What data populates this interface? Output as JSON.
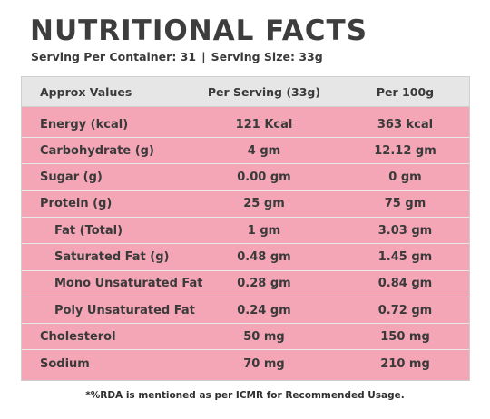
{
  "title": "NUTRITIONAL FACTS",
  "serving": {
    "per_container": "Serving Per Container: 31",
    "separator": "|",
    "size": "Serving Size: 33g"
  },
  "headers": [
    "Approx Values",
    "Per Serving (33g)",
    "Per 100g"
  ],
  "rows": [
    {
      "label": "Energy (kcal)",
      "per_serving": "121  Kcal",
      "per_100g": "363 kcal",
      "indent": false
    },
    {
      "label": "Carbohydrate (g)",
      "per_serving": "4 gm",
      "per_100g": "12.12 gm",
      "indent": false
    },
    {
      "label": "Sugar (g)",
      "per_serving": "0.00 gm",
      "per_100g": "0 gm",
      "indent": false
    },
    {
      "label": "Protein (g)",
      "per_serving": "25 gm",
      "per_100g": "75 gm",
      "indent": false
    },
    {
      "label": "Fat (Total)",
      "per_serving": "1 gm",
      "per_100g": "3.03 gm",
      "indent": true
    },
    {
      "label": "Saturated Fat (g)",
      "per_serving": "0.48 gm",
      "per_100g": "1.45 gm",
      "indent": true
    },
    {
      "label": "Mono Unsaturated Fat",
      "per_serving": "0.28 gm",
      "per_100g": "0.84 gm",
      "indent": true
    },
    {
      "label": "Poly Unsaturated Fat",
      "per_serving": "0.24 gm",
      "per_100g": "0.72 gm",
      "indent": true
    },
    {
      "label": "Cholesterol",
      "per_serving": "50 mg",
      "per_100g": "150 mg",
      "indent": false
    },
    {
      "label": "Sodium",
      "per_serving": "70 mg",
      "per_100g": "210 mg",
      "indent": false
    }
  ],
  "footnote": "*%RDA is mentioned as per ICMR for Recommended Usage.",
  "colors": {
    "table_body": "#f4a6b6",
    "header_bg": "#e6e6e6",
    "text": "#3a3a3a"
  }
}
